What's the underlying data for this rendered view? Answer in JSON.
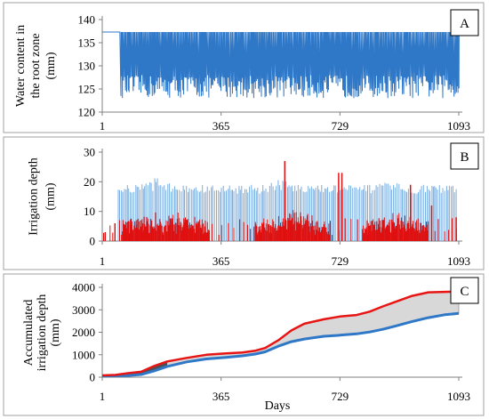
{
  "colors": {
    "water": "#2f78c8",
    "irr_a": "#7aaee0",
    "irr_b": "#e01010",
    "acc_a": "#2f78c8",
    "acc_b": "#e81515",
    "fill": "#d8d8d8",
    "axis": "#808080",
    "frame": "#a0a0a0"
  },
  "chart_data": [
    {
      "id": "A",
      "type": "line",
      "panel_label": "A",
      "ylabel_lines": [
        "Water content in",
        "the root zone",
        "(mm)"
      ],
      "xlabel": "",
      "x_ticks": [
        1,
        365,
        729,
        1093
      ],
      "x_tick_labels": [
        "1",
        "365",
        "729",
        "1093"
      ],
      "xlim": [
        1,
        1093
      ],
      "ylim": [
        120,
        140
      ],
      "y_ticks": [
        120,
        125,
        130,
        135,
        140
      ],
      "series": [
        {
          "description": "daily oscillating water content",
          "plateau": 137.3,
          "plateau_until_day": 55,
          "cycle_days": 3,
          "min_range": [
            123,
            128
          ],
          "max_value": 137.3,
          "last_value": 127
        }
      ],
      "grid": false,
      "legend": "none"
    },
    {
      "id": "B",
      "type": "bar",
      "panel_label": "B",
      "ylabel_lines": [
        "Irrigation depth",
        "(mm)"
      ],
      "xlabel": "",
      "x_ticks": [
        1,
        365,
        729,
        1093
      ],
      "x_tick_labels": [
        "1",
        "365",
        "729",
        "1093"
      ],
      "xlim": [
        1,
        1093
      ],
      "ylim": [
        0,
        30
      ],
      "y_ticks": [
        0,
        10,
        20,
        30
      ],
      "series": [
        {
          "description": "light blue irrigation events",
          "typical_range": [
            16,
            19
          ],
          "peaks": [
            [
              165,
              22
            ],
            [
              545,
              21
            ],
            [
              880,
              20
            ]
          ],
          "start_day": 50
        },
        {
          "description": "red irrigation events",
          "dense_segments": [
            [
              60,
              330
            ],
            [
              470,
              700
            ],
            [
              800,
              1000
            ]
          ],
          "typical_dense": [
            2,
            7
          ],
          "isolated_tall": [
            [
              10,
              3
            ],
            [
              40,
              6
            ],
            [
              560,
              27
            ],
            [
              725,
              23
            ],
            [
              735,
              23
            ],
            [
              945,
              19
            ],
            [
              1010,
              12
            ],
            [
              1085,
              8
            ]
          ]
        }
      ],
      "grid": false,
      "legend": "none"
    },
    {
      "id": "C",
      "type": "line",
      "panel_label": "C",
      "ylabel_lines": [
        "Accumulated",
        "irrigation depth",
        "(mm)"
      ],
      "xlabel": "Days",
      "x_ticks": [
        1,
        365,
        729,
        1093
      ],
      "x_tick_labels": [
        "1",
        "365",
        "729",
        "1093"
      ],
      "xlim": [
        1,
        1093
      ],
      "ylim": [
        0,
        4000
      ],
      "y_ticks": [
        0,
        1000,
        2000,
        3000,
        4000
      ],
      "x": [
        1,
        40,
        80,
        120,
        160,
        200,
        260,
        320,
        380,
        430,
        470,
        500,
        540,
        580,
        620,
        680,
        729,
        780,
        820,
        860,
        900,
        950,
        1000,
        1050,
        1093
      ],
      "series": [
        {
          "values": [
            50,
            60,
            75,
            120,
            280,
            480,
            680,
            810,
            880,
            950,
            1030,
            1130,
            1380,
            1580,
            1700,
            1820,
            1870,
            1930,
            2010,
            2130,
            2280,
            2480,
            2650,
            2780,
            2840
          ]
        },
        {
          "values": [
            80,
            100,
            180,
            240,
            500,
            700,
            860,
            1000,
            1060,
            1100,
            1180,
            1300,
            1640,
            2080,
            2380,
            2580,
            2700,
            2770,
            2920,
            3150,
            3360,
            3620,
            3780,
            3800,
            3810
          ]
        }
      ],
      "fill_between": true,
      "grid": false,
      "legend": "none"
    }
  ]
}
